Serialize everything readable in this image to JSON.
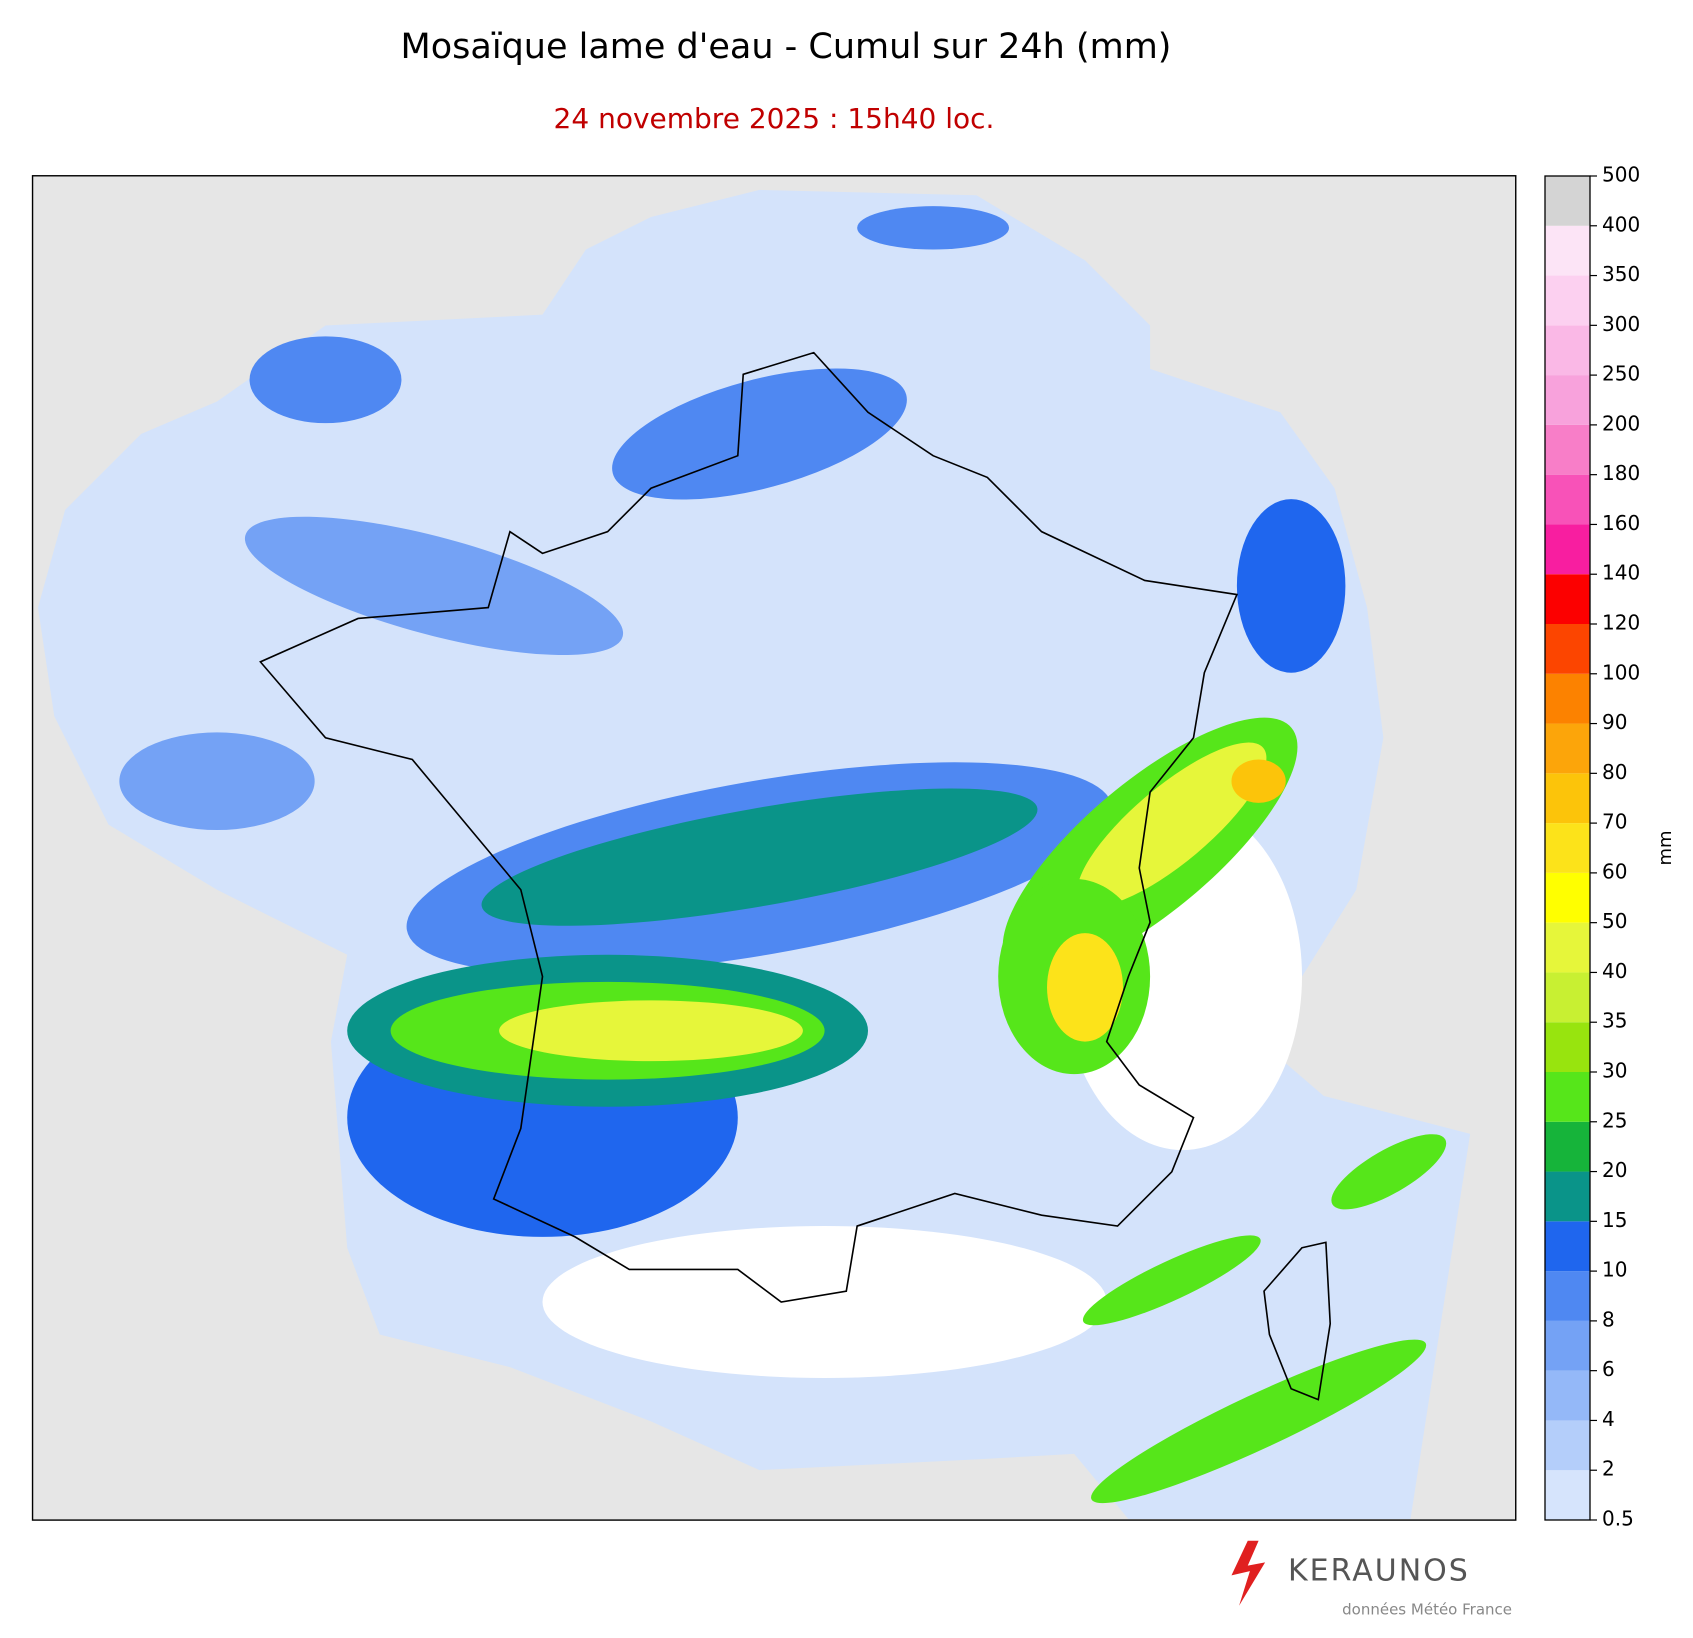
{
  "header": {
    "title": "Mosaïque lame d'eau - Cumul sur 24h (mm)",
    "subtitle": "24 novembre 2025 : 15h40 loc."
  },
  "colorbar": {
    "label": "mm",
    "ticks": [
      0.5,
      2,
      4,
      6,
      8,
      10,
      15,
      20,
      25,
      30,
      35,
      40,
      50,
      60,
      70,
      80,
      90,
      100,
      120,
      140,
      160,
      180,
      200,
      250,
      300,
      350,
      400,
      500
    ],
    "colors": [
      "#d6e4fc",
      "#b4cefa",
      "#94b8f8",
      "#74a2f5",
      "#4f88f2",
      "#1f66ee",
      "#0a9489",
      "#16b43a",
      "#56e61a",
      "#98e40e",
      "#c8f032",
      "#e6f63a",
      "#ffff00",
      "#fce31a",
      "#fcc40a",
      "#fca50a",
      "#fc8200",
      "#fc4500",
      "#fc0000",
      "#f81ea0",
      "#f852b8",
      "#f87ec8",
      "#f8a2dc",
      "#fab8e6",
      "#fcd0f0",
      "#fce4f6",
      "#d4d4d4"
    ]
  },
  "footer": {
    "brand": "KERAUNOS",
    "credit": "données Météo France"
  }
}
